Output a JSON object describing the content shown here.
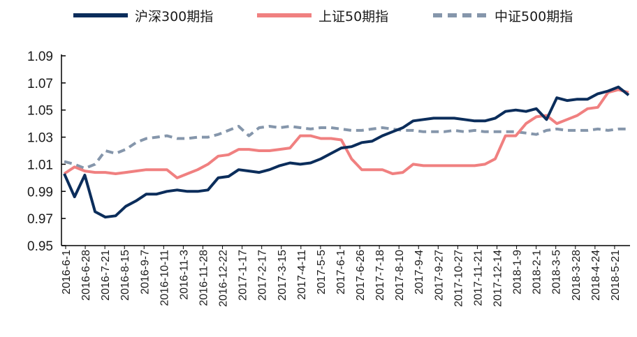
{
  "chart_data": {
    "type": "line",
    "title": "",
    "xlabel": "",
    "ylabel": "",
    "ylim": [
      0.95,
      1.09
    ],
    "yticks": [
      "1.09",
      "1.07",
      "1.05",
      "1.03",
      "1.01",
      "0.99",
      "0.97",
      "0.95"
    ],
    "xticks": [
      "2016-6-1",
      "2016-6-28",
      "2016-7-21",
      "2016-8-15",
      "2016-9-7",
      "2016-10-11",
      "2016-11-3",
      "2016-11-28",
      "2016-12-22",
      "2017-1-17",
      "2017-2-17",
      "2017-3-15",
      "2017-4-11",
      "2017-5-5",
      "2017-6-1",
      "2017-6-26",
      "2017-7-18",
      "2017-8-10",
      "2017-9-4",
      "2017-9-27",
      "2017-10-27",
      "2017-11-21",
      "2017-12-14",
      "2018-1-9",
      "2018-2-1",
      "2018-3-5",
      "2018-3-28",
      "2018-4-24",
      "2018-5-21"
    ],
    "grid": false,
    "legend_position": "top",
    "series": [
      {
        "name": "沪深300期指",
        "color": "#0b2d5b",
        "style": "solid",
        "values": [
          1.003,
          0.986,
          1.002,
          0.975,
          0.971,
          0.972,
          0.979,
          0.983,
          0.988,
          0.988,
          0.99,
          0.991,
          0.99,
          0.99,
          0.991,
          1.0,
          1.001,
          1.006,
          1.005,
          1.004,
          1.006,
          1.009,
          1.011,
          1.01,
          1.011,
          1.014,
          1.018,
          1.022,
          1.023,
          1.026,
          1.027,
          1.031,
          1.034,
          1.037,
          1.042,
          1.043,
          1.044,
          1.044,
          1.044,
          1.043,
          1.042,
          1.042,
          1.044,
          1.049,
          1.05,
          1.049,
          1.051,
          1.043,
          1.059,
          1.057,
          1.058,
          1.058,
          1.062,
          1.064,
          1.067,
          1.061
        ]
      },
      {
        "name": "上证50期指",
        "color": "#f08080",
        "style": "solid",
        "values": [
          1.003,
          1.008,
          1.005,
          1.004,
          1.004,
          1.003,
          1.004,
          1.005,
          1.006,
          1.006,
          1.006,
          1.0,
          1.003,
          1.006,
          1.01,
          1.016,
          1.017,
          1.021,
          1.021,
          1.02,
          1.02,
          1.021,
          1.022,
          1.031,
          1.031,
          1.029,
          1.029,
          1.028,
          1.014,
          1.006,
          1.006,
          1.006,
          1.003,
          1.004,
          1.01,
          1.009,
          1.009,
          1.009,
          1.009,
          1.009,
          1.009,
          1.01,
          1.014,
          1.031,
          1.031,
          1.04,
          1.045,
          1.046,
          1.04,
          1.043,
          1.046,
          1.051,
          1.052,
          1.063,
          1.065,
          1.063
        ]
      },
      {
        "name": "中证500期指",
        "color": "#8596ab",
        "style": "dashed",
        "values": [
          1.012,
          1.01,
          1.007,
          1.01,
          1.02,
          1.018,
          1.021,
          1.026,
          1.029,
          1.03,
          1.031,
          1.029,
          1.029,
          1.03,
          1.03,
          1.032,
          1.035,
          1.038,
          1.031,
          1.037,
          1.038,
          1.037,
          1.038,
          1.037,
          1.036,
          1.037,
          1.037,
          1.036,
          1.035,
          1.035,
          1.036,
          1.037,
          1.036,
          1.035,
          1.035,
          1.034,
          1.034,
          1.034,
          1.035,
          1.034,
          1.035,
          1.034,
          1.034,
          1.034,
          1.034,
          1.033,
          1.032,
          1.035,
          1.036,
          1.035,
          1.035,
          1.035,
          1.036,
          1.035,
          1.036,
          1.036
        ]
      }
    ]
  }
}
